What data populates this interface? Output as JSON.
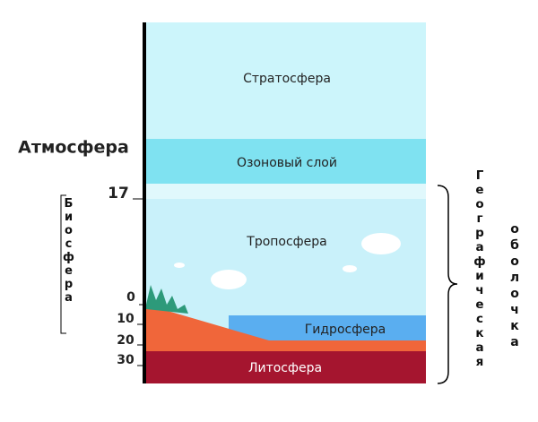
{
  "layers": {
    "stratosphere": "Стратосфера",
    "ozone": "Озоновый слой",
    "troposphere": "Тропосфера",
    "hydrosphere": "Гидросфера",
    "lithosphere": "Литосфера"
  },
  "atmosphere": "Атмосфера",
  "biosphere": "Биосфера",
  "geo_envelope": {
    "line1": "Географическая",
    "line2": "оболочка"
  },
  "scale": [
    "17",
    "0",
    "10",
    "20",
    "30"
  ]
}
